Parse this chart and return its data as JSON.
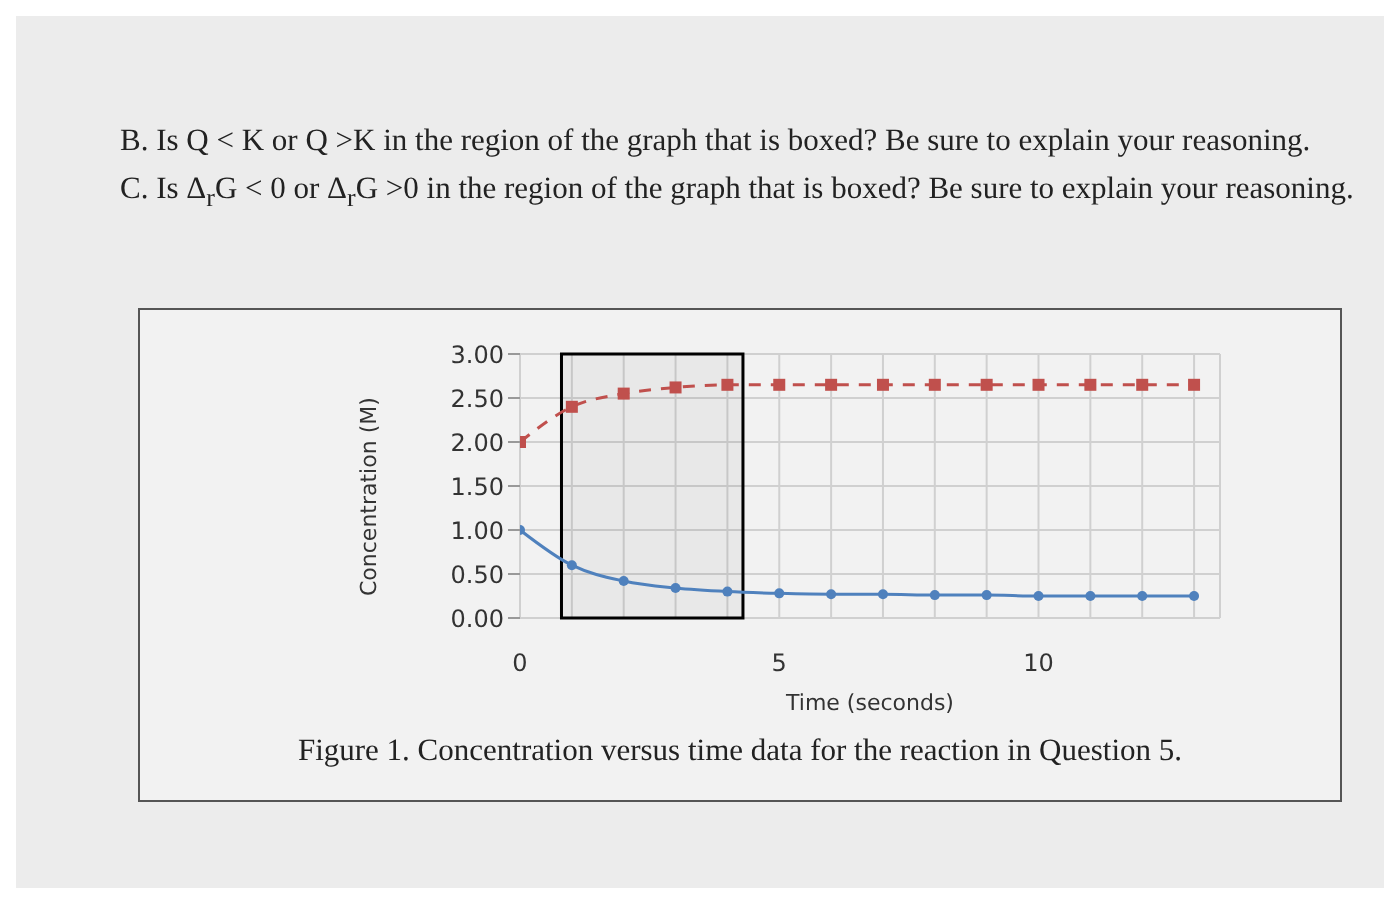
{
  "chart_data": {
    "type": "line",
    "xlabel": "Time (seconds)",
    "ylabel": "Concentration (M)",
    "annotations": [
      "B. Is Q < K or Q >K in the region of the graph that is boxed? Be sure to explain your reasoning.",
      "C. Is Δ$_{r}$G < 0 or Δ$_{r}$G >0 in the region of the graph that is boxed? Be sure to explain your reasoning.",
      "Figure 1. Concentration versus time data for the reaction in Question 5."
    ],
    "x": [
      0,
      1,
      2,
      3,
      4,
      5,
      6,
      7,
      8,
      9,
      10,
      11,
      12,
      13
    ],
    "series": [
      {
        "color": "#c0504d",
        "line_style": "dashed",
        "marker": "square",
        "values": [
          2.0,
          2.4,
          2.55,
          2.62,
          2.65,
          2.65,
          2.65,
          2.65,
          2.65,
          2.65,
          2.65,
          2.65,
          2.65,
          2.65
        ]
      },
      {
        "color": "#4f81bd",
        "line_style": "solid",
        "marker": "circle",
        "values": [
          1.0,
          0.6,
          0.42,
          0.34,
          0.3,
          0.28,
          0.27,
          0.27,
          0.26,
          0.26,
          0.25,
          0.25,
          0.25,
          0.25
        ]
      }
    ],
    "xlim": [
      0,
      13.5
    ],
    "xticks": [
      0,
      {
        "value": 1,
        "label": null
      },
      {
        "value": 2,
        "label": null
      },
      {
        "value": 3,
        "label": null
      },
      {
        "value": 4,
        "label": null
      },
      5,
      {
        "value": 6,
        "label": null
      },
      {
        "value": 7,
        "label": null
      },
      {
        "value": 8,
        "label": null
      },
      {
        "value": 9,
        "label": null
      },
      10,
      {
        "value": 11,
        "label": null
      },
      {
        "value": 12,
        "label": null
      },
      {
        "value": 13,
        "label": null
      }
    ],
    "ylim": [
      0,
      3
    ],
    "yticks": [
      {
        "value": 0,
        "label": "0.00"
      },
      {
        "value": 0.5,
        "label": "0.50"
      },
      {
        "value": 1,
        "label": "1.00"
      },
      {
        "value": 1.5,
        "label": "1.50"
      },
      {
        "value": 2,
        "label": "2.00"
      },
      {
        "value": 2.5,
        "label": "2.50"
      },
      {
        "value": 3,
        "label": "3.00"
      }
    ],
    "grid": true,
    "bands": [
      {
        "axis": "x",
        "from": 0.8,
        "to": 4.3,
        "color": "#000000"
      }
    ]
  }
}
